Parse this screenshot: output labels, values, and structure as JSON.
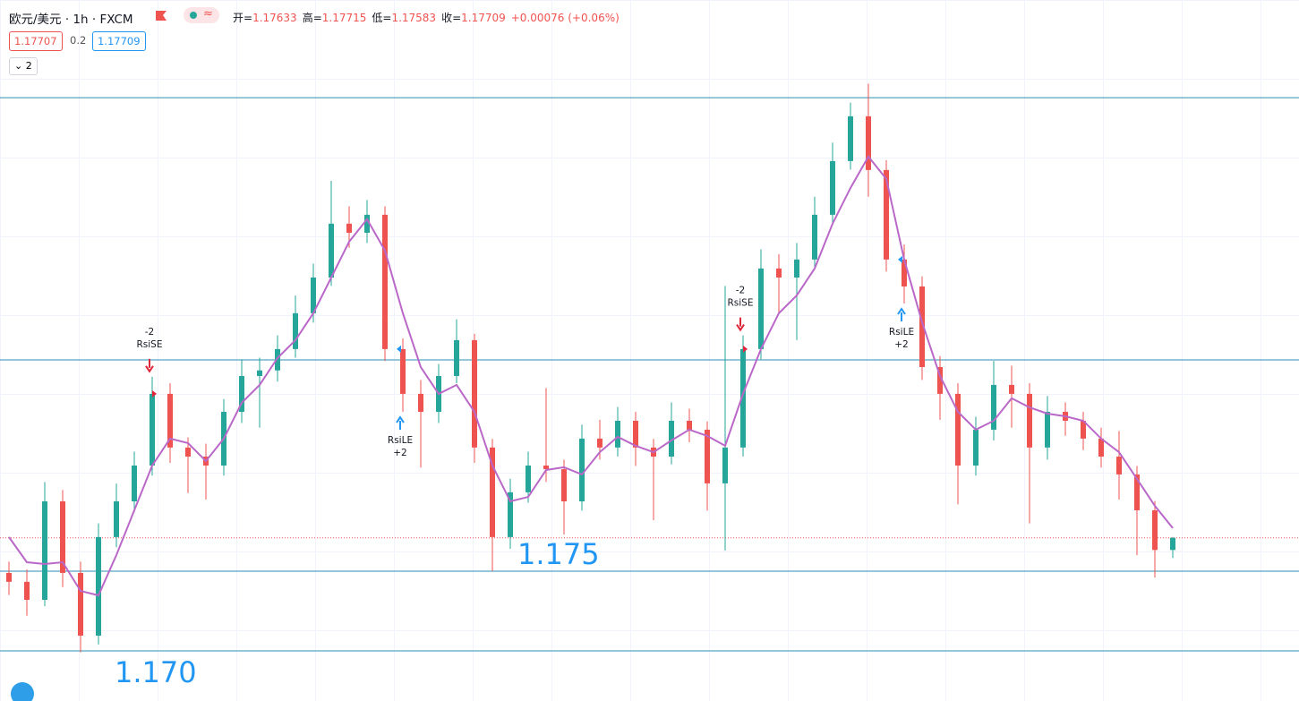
{
  "header": {
    "symbol": "欧元/美元 · 1h · FXCM",
    "ohlc": [
      {
        "label": "开=",
        "value": 1.17633
      },
      {
        "label": "高=",
        "value": 1.17715
      },
      {
        "label": "低=",
        "value": 1.17583
      },
      {
        "label": "收=",
        "value": 1.17709
      }
    ],
    "change": "+0.00076 (+0.06%)",
    "bid": 1.17707,
    "spread": 0.2,
    "ask": 1.17709,
    "collapse": "2"
  },
  "chart_data": {
    "type": "candlestick",
    "ylim": [
      1.16685,
      1.21085
    ],
    "up_color": "#26a69a",
    "down_color": "#ef5350",
    "open": [
      1.17489,
      1.17433,
      1.1732,
      1.17938,
      1.17489,
      1.17095,
      1.17714,
      1.17938,
      1.18163,
      1.18613,
      1.18276,
      1.18219,
      1.18163,
      1.185,
      1.18725,
      1.1876,
      1.18894,
      1.19119,
      1.19343,
      1.19681,
      1.19624,
      1.19737,
      1.18894,
      1.18613,
      1.185,
      1.18725,
      1.1895,
      1.18276,
      1.17714,
      1.17995,
      1.18163,
      1.1814,
      1.17938,
      1.18332,
      1.18276,
      1.18444,
      1.18276,
      1.18219,
      1.18444,
      1.18388,
      1.18051,
      1.18276,
      1.18894,
      1.194,
      1.19343,
      1.19456,
      1.19737,
      1.20074,
      1.20355,
      1.20018,
      1.19456,
      1.19287,
      1.18781,
      1.18613,
      1.18163,
      1.18388,
      1.18669,
      1.18613,
      1.18276,
      1.185,
      1.18444,
      1.18332,
      1.18219,
      1.18107,
      1.17882,
      1.17633
    ],
    "high": [
      1.1756,
      1.1751,
      1.1806,
      1.1801,
      1.1756,
      1.178,
      1.1805,
      1.1825,
      1.1872,
      1.1868,
      1.1834,
      1.183,
      1.1858,
      1.1883,
      1.1884,
      1.1898,
      1.1923,
      1.1943,
      1.1995,
      1.1979,
      1.1983,
      1.1979,
      1.1896,
      1.187,
      1.188,
      1.1908,
      1.1899,
      1.1833,
      1.1808,
      1.1825,
      1.1865,
      1.182,
      1.1842,
      1.1845,
      1.1853,
      1.185,
      1.1833,
      1.1856,
      1.1852,
      1.1844,
      1.1929,
      1.1898,
      1.1952,
      1.1949,
      1.1956,
      1.1985,
      1.2019,
      1.2044,
      1.2056,
      1.2008,
      1.1955,
      1.1935,
      1.1885,
      1.1868,
      1.1847,
      1.1882,
      1.1879,
      1.1868,
      1.186,
      1.1856,
      1.185,
      1.184,
      1.1838,
      1.1816,
      1.1794,
      1.17715
    ],
    "low": [
      1.1735,
      1.1722,
      1.1728,
      1.174,
      1.1699,
      1.1704,
      1.1765,
      1.1787,
      1.181,
      1.1818,
      1.1799,
      1.1795,
      1.181,
      1.1843,
      1.184,
      1.1869,
      1.1884,
      1.1906,
      1.1929,
      1.1953,
      1.1956,
      1.1882,
      1.185,
      1.1815,
      1.1843,
      1.1868,
      1.1818,
      1.175,
      1.1764,
      1.1793,
      1.1806,
      1.1773,
      1.1788,
      1.182,
      1.1822,
      1.1816,
      1.1782,
      1.1817,
      1.1831,
      1.1788,
      1.1763,
      1.1822,
      1.1883,
      1.1912,
      1.1895,
      1.194,
      1.1968,
      1.2002,
      1.1985,
      1.1938,
      1.1918,
      1.187,
      1.1845,
      1.1792,
      1.181,
      1.1832,
      1.184,
      1.178,
      1.182,
      1.1835,
      1.1826,
      1.1815,
      1.1795,
      1.176,
      1.1746,
      1.17583
    ],
    "close": [
      1.17433,
      1.1732,
      1.17938,
      1.17489,
      1.17095,
      1.17714,
      1.17938,
      1.18163,
      1.18613,
      1.18276,
      1.18219,
      1.18163,
      1.185,
      1.18725,
      1.1876,
      1.18894,
      1.19119,
      1.19343,
      1.19681,
      1.19624,
      1.19737,
      1.18894,
      1.18613,
      1.185,
      1.18725,
      1.1895,
      1.18276,
      1.17714,
      1.17995,
      1.18163,
      1.1814,
      1.17938,
      1.18332,
      1.18276,
      1.18444,
      1.18276,
      1.18219,
      1.18444,
      1.18388,
      1.18051,
      1.18276,
      1.18894,
      1.194,
      1.19343,
      1.19456,
      1.19737,
      1.20074,
      1.20355,
      1.20018,
      1.19456,
      1.19287,
      1.18781,
      1.18613,
      1.18163,
      1.18388,
      1.18669,
      1.18613,
      1.18276,
      1.185,
      1.18444,
      1.18332,
      1.18219,
      1.18107,
      1.17882,
      1.17633,
      1.17709
    ],
    "ma": {
      "color": "#ba68c8",
      "values": [
        1.17714,
        1.17556,
        1.17545,
        1.17556,
        1.17376,
        1.17348,
        1.17601,
        1.17882,
        1.18163,
        1.18332,
        1.18304,
        1.18191,
        1.18332,
        1.18557,
        1.18669,
        1.18838,
        1.1895,
        1.19119,
        1.19343,
        1.19568,
        1.19709,
        1.19512,
        1.19119,
        1.18781,
        1.18613,
        1.18669,
        1.185,
        1.18163,
        1.17938,
        1.17966,
        1.18135,
        1.18152,
        1.18107,
        1.18247,
        1.18343,
        1.18287,
        1.18247,
        1.18321,
        1.18388,
        1.18349,
        1.18287,
        1.18613,
        1.18894,
        1.19119,
        1.19231,
        1.194,
        1.19681,
        1.19905,
        1.20102,
        1.19962,
        1.19456,
        1.19062,
        1.18725,
        1.185,
        1.18388,
        1.18444,
        1.18585,
        1.18528,
        1.18489,
        1.18472,
        1.18444,
        1.18332,
        1.18247,
        1.18079,
        1.1791,
        1.1777
      ]
    },
    "levels": [
      {
        "value": 1.17,
        "label": "1.170"
      },
      {
        "value": 1.175,
        "label": "1.175"
      },
      {
        "value": 1.18826
      },
      {
        "value": 1.20472
      }
    ],
    "level_color": "#2a8fb3",
    "label_color": "#2196f3",
    "last_price_line": true,
    "signals": [
      {
        "side": "short",
        "lines": [
          "-2",
          "RsiSE"
        ]
      },
      {
        "side": "long",
        "lines": [
          "RsiLE",
          "+2"
        ]
      },
      {
        "side": "short",
        "lines": [
          "-2",
          "RsiSE"
        ]
      },
      {
        "side": "long",
        "lines": [
          "RsiLE",
          "+2"
        ]
      }
    ]
  }
}
